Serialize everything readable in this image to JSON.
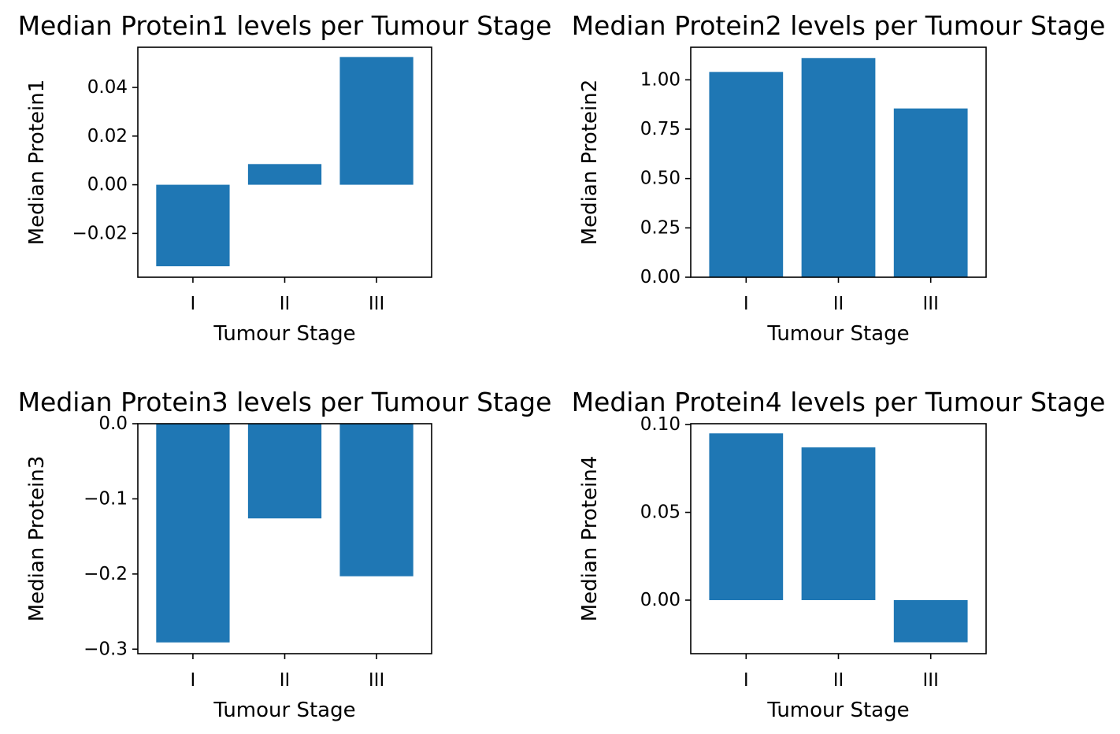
{
  "chart_data": [
    {
      "type": "bar",
      "title": "Median Protein1 levels per Tumour Stage",
      "xlabel": "Tumour Stage",
      "ylabel": "Median Protein1",
      "categories": [
        "I",
        "II",
        "III"
      ],
      "values": [
        -0.0335,
        0.0085,
        0.0525
      ],
      "ylim": [
        -0.038,
        0.0565
      ],
      "yticks": [
        -0.02,
        0.0,
        0.02,
        0.04
      ],
      "ytick_labels": [
        "−0.02",
        "0.00",
        "0.02",
        "0.04"
      ],
      "color": "#1f77b4",
      "grid": false
    },
    {
      "type": "bar",
      "title": "Median Protein2 levels per Tumour Stage",
      "xlabel": "Tumour Stage",
      "ylabel": "Median Protein2",
      "categories": [
        "I",
        "II",
        "III"
      ],
      "values": [
        1.04,
        1.11,
        0.855
      ],
      "ylim": [
        0,
        1.165
      ],
      "yticks": [
        0.0,
        0.25,
        0.5,
        0.75,
        1.0
      ],
      "ytick_labels": [
        "0.00",
        "0.25",
        "0.50",
        "0.75",
        "1.00"
      ],
      "color": "#1f77b4",
      "grid": false
    },
    {
      "type": "bar",
      "title": "Median Protein3 levels per Tumour Stage",
      "xlabel": "Tumour Stage",
      "ylabel": "Median Protein3",
      "categories": [
        "I",
        "II",
        "III"
      ],
      "values": [
        -0.291,
        -0.126,
        -0.203
      ],
      "ylim": [
        -0.306,
        0
      ],
      "yticks": [
        -0.3,
        -0.2,
        -0.1,
        0.0
      ],
      "ytick_labels": [
        "−0.3",
        "−0.2",
        "−0.1",
        "0.0"
      ],
      "color": "#1f77b4",
      "grid": false
    },
    {
      "type": "bar",
      "title": "Median Protein4 levels per Tumour Stage",
      "xlabel": "Tumour Stage",
      "ylabel": "Median Protein4",
      "categories": [
        "I",
        "II",
        "III"
      ],
      "values": [
        0.095,
        0.087,
        -0.024
      ],
      "ylim": [
        -0.0305,
        0.1005
      ],
      "yticks": [
        0.0,
        0.05,
        0.1
      ],
      "ytick_labels": [
        "0.00",
        "0.05",
        "0.10"
      ],
      "color": "#1f77b4",
      "grid": false
    }
  ]
}
